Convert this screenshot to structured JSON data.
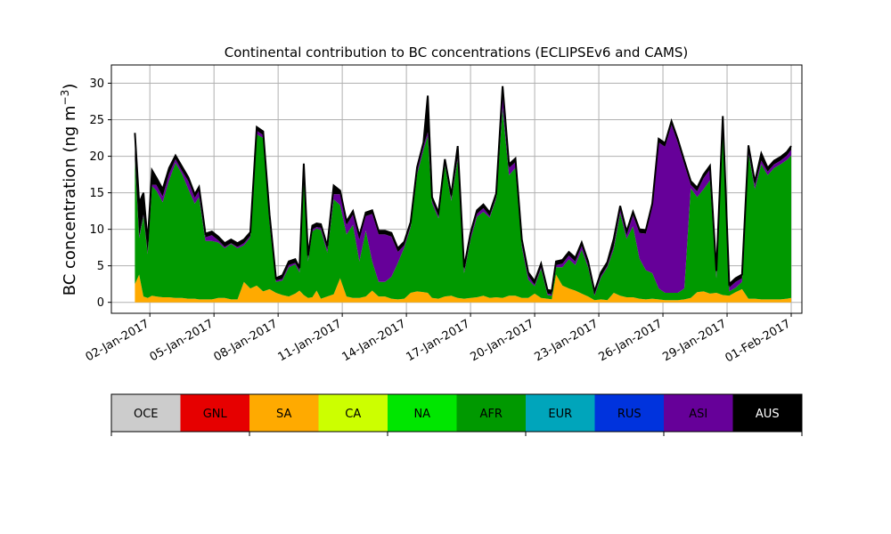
{
  "chart_data": {
    "type": "area",
    "title": "Continental contribution to BC concentrations (ECLIPSEv6 and CAMS)",
    "ylabel": "BC concentration (ng m",
    "ylabel_sup": "−3",
    "ylabel_close": ")",
    "xlabel": "",
    "x_ticks": [
      "02-Jan-2017",
      "05-Jan-2017",
      "08-Jan-2017",
      "11-Jan-2017",
      "14-Jan-2017",
      "17-Jan-2017",
      "20-Jan-2017",
      "23-Jan-2017",
      "26-Jan-2017",
      "29-Jan-2017",
      "01-Feb-2017"
    ],
    "y_ticks": [
      "0",
      "5",
      "10",
      "15",
      "20",
      "25",
      "30"
    ],
    "ylim": [
      -1.5,
      32.5
    ],
    "xlim_days": [
      -0.8,
      31.5
    ],
    "grid": true,
    "legend": {
      "placement": "colorbar-bottom",
      "entries": [
        {
          "label": "OCE",
          "color": "#cccccc"
        },
        {
          "label": "GNL",
          "color": "#e60000"
        },
        {
          "label": "SA",
          "color": "#ffaa00"
        },
        {
          "label": "CA",
          "color": "#ccff00"
        },
        {
          "label": "NA",
          "color": "#00e600"
        },
        {
          "label": "AFR",
          "color": "#009900"
        },
        {
          "label": "EUR",
          "color": "#00a5bb"
        },
        {
          "label": "RUS",
          "color": "#0033dd"
        },
        {
          "label": "ASI",
          "color": "#660099"
        },
        {
          "label": "AUS",
          "color": "#000000"
        }
      ]
    },
    "x_days": [
      0.3,
      0.5,
      0.7,
      0.9,
      1.1,
      1.3,
      1.6,
      1.9,
      2.2,
      2.5,
      2.8,
      3.1,
      3.3,
      3.6,
      3.9,
      4.2,
      4.5,
      4.8,
      5.1,
      5.4,
      5.7,
      6.0,
      6.3,
      6.6,
      6.9,
      7.2,
      7.5,
      7.8,
      8.0,
      8.2,
      8.4,
      8.6,
      8.8,
      9.0,
      9.3,
      9.6,
      9.9,
      10.2,
      10.5,
      10.8,
      11.1,
      11.4,
      11.7,
      12.0,
      12.3,
      12.6,
      12.9,
      13.2,
      13.5,
      13.8,
      14.0,
      14.2,
      14.5,
      14.8,
      15.1,
      15.4,
      15.7,
      16.0,
      16.3,
      16.6,
      16.9,
      17.2,
      17.5,
      17.8,
      18.1,
      18.4,
      18.7,
      19.0,
      19.3,
      19.6,
      19.8,
      20.0,
      20.3,
      20.6,
      20.9,
      21.2,
      21.5,
      21.8,
      22.1,
      22.4,
      22.7,
      23.0,
      23.3,
      23.6,
      23.9,
      24.2,
      24.5,
      24.8,
      25.1,
      25.4,
      25.7,
      26.0,
      26.3,
      26.6,
      26.9,
      27.2,
      27.5,
      27.8,
      28.1,
      28.4,
      28.7,
      29.0,
      29.3,
      29.6,
      29.9,
      30.2,
      30.5,
      30.8,
      31.0
    ],
    "series": [
      {
        "name": "SA",
        "color": "#ffaa00",
        "values": [
          2.5,
          3.8,
          0.8,
          0.6,
          0.9,
          0.8,
          0.7,
          0.7,
          0.6,
          0.6,
          0.5,
          0.5,
          0.4,
          0.4,
          0.4,
          0.6,
          0.6,
          0.4,
          0.4,
          2.8,
          1.9,
          2.3,
          1.5,
          1.8,
          1.3,
          1.0,
          0.8,
          1.2,
          1.6,
          1.0,
          0.6,
          0.7,
          1.6,
          0.5,
          0.8,
          1.1,
          3.3,
          0.8,
          0.6,
          0.6,
          0.8,
          1.6,
          0.8,
          0.8,
          0.5,
          0.4,
          0.5,
          1.3,
          1.5,
          1.4,
          1.3,
          0.6,
          0.5,
          0.8,
          0.9,
          0.6,
          0.5,
          0.6,
          0.7,
          0.9,
          0.6,
          0.7,
          0.6,
          0.9,
          0.9,
          0.6,
          0.6,
          1.2,
          0.6,
          0.5,
          0.4,
          3.8,
          2.3,
          1.9,
          1.6,
          1.2,
          0.8,
          0.3,
          0.4,
          0.3,
          1.3,
          0.9,
          0.7,
          0.7,
          0.5,
          0.4,
          0.5,
          0.4,
          0.3,
          0.3,
          0.3,
          0.4,
          0.6,
          1.4,
          1.5,
          1.2,
          1.3,
          1.0,
          0.9,
          1.4,
          1.8,
          0.5,
          0.5,
          0.4,
          0.4,
          0.4,
          0.4,
          0.5,
          0.6
        ]
      },
      {
        "name": "AFR",
        "color": "#009900",
        "values": [
          17.0,
          5.0,
          11.0,
          6.0,
          15.0,
          14.5,
          13.0,
          16.0,
          18.5,
          17.0,
          15.0,
          13.0,
          14.0,
          8.0,
          8.0,
          7.6,
          6.8,
          7.6,
          7.0,
          5.0,
          7.0,
          20.7,
          21.0,
          9.0,
          1.5,
          2.0,
          4.0,
          4.0,
          2.5,
          16.0,
          5.0,
          9.0,
          8.5,
          9.4,
          6.0,
          13.0,
          10.0,
          8.5,
          10.0,
          5.0,
          9.0,
          4.0,
          2.0,
          2.0,
          3.0,
          5.0,
          7.0,
          9.0,
          16.0,
          19.5,
          21.5,
          13.0,
          11.0,
          18.0,
          13.0,
          19.0,
          3.5,
          8.0,
          11.0,
          11.5,
          11.0,
          13.5,
          26.0,
          16.5,
          17.5,
          7.0,
          2.5,
          1.0,
          4.0,
          0.5,
          0.5,
          1.0,
          2.5,
          4.0,
          3.5,
          6.0,
          4.0,
          0.6,
          3.0,
          4.5,
          6.0,
          11.3,
          8.0,
          9.7,
          5.5,
          4.0,
          3.5,
          1.5,
          1.0,
          1.0,
          1.0,
          1.5,
          15.0,
          13.0,
          14.0,
          15.5,
          2.0,
          23.0,
          0.6,
          0.6,
          1.0,
          20.0,
          15.0,
          18.5,
          17.0,
          18.0,
          18.5,
          19.0,
          19.5
        ]
      },
      {
        "name": "ASI",
        "color": "#660099",
        "values": [
          0.2,
          0.3,
          0.2,
          0.2,
          0.2,
          0.8,
          0.8,
          0.9,
          0.5,
          0.4,
          1.1,
          0.8,
          0.9,
          0.5,
          0.8,
          0.3,
          0.2,
          0.1,
          0.2,
          0.3,
          0.2,
          0.5,
          0.4,
          0.7,
          0.2,
          0.2,
          0.3,
          0.2,
          0.3,
          0.5,
          0.3,
          0.3,
          0.2,
          0.3,
          0.4,
          0.7,
          1.5,
          1.3,
          1.4,
          3.0,
          2.0,
          6.5,
          6.5,
          6.5,
          5.5,
          1.5,
          0.3,
          0.2,
          0.5,
          0.5,
          0.5,
          0.3,
          0.3,
          0.3,
          0.3,
          0.3,
          0.3,
          0.4,
          0.4,
          0.5,
          0.2,
          0.2,
          2.5,
          1.0,
          0.8,
          0.5,
          0.5,
          0.2,
          0.2,
          0.2,
          0.2,
          0.3,
          0.5,
          0.5,
          0.5,
          0.5,
          0.3,
          0.3,
          0.2,
          0.2,
          0.4,
          0.5,
          0.5,
          1.5,
          3.5,
          5.0,
          9.0,
          20.0,
          20.0,
          23.0,
          20.5,
          17.0,
          0.5,
          0.8,
          1.5,
          1.5,
          0.5,
          0.5,
          0.5,
          0.8,
          0.5,
          0.5,
          0.5,
          0.5,
          0.5,
          0.5,
          0.5,
          0.6,
          0.8
        ]
      },
      {
        "name": "AUS",
        "color": "#000000",
        "values": [
          3.5,
          4.5,
          3.0,
          1.5,
          2.0,
          1.0,
          1.0,
          0.8,
          0.5,
          0.6,
          0.5,
          0.5,
          0.5,
          0.5,
          0.5,
          0.5,
          0.5,
          0.5,
          0.5,
          0.5,
          0.5,
          0.5,
          0.5,
          0.5,
          0.3,
          0.5,
          0.5,
          0.5,
          0.3,
          1.5,
          0.5,
          0.5,
          0.5,
          0.5,
          0.5,
          1.2,
          0.5,
          0.5,
          0.5,
          0.5,
          0.5,
          0.5,
          0.5,
          0.5,
          0.5,
          0.5,
          0.5,
          0.5,
          0.5,
          0.5,
          5.0,
          0.5,
          0.5,
          0.5,
          0.5,
          1.5,
          0.5,
          0.5,
          0.5,
          0.5,
          0.5,
          0.5,
          0.5,
          0.5,
          0.5,
          0.5,
          0.5,
          0.5,
          0.5,
          0.5,
          0.5,
          0.5,
          0.5,
          0.5,
          0.5,
          0.5,
          0.5,
          0.3,
          0.5,
          0.5,
          1.0,
          0.5,
          0.5,
          0.5,
          0.5,
          0.5,
          0.5,
          0.5,
          0.5,
          0.5,
          0.5,
          0.5,
          0.5,
          0.5,
          0.5,
          0.5,
          0.5,
          1.0,
          0.5,
          0.5,
          0.5,
          0.5,
          0.5,
          1.0,
          0.5,
          0.5,
          0.5,
          0.5,
          0.5
        ]
      }
    ]
  }
}
